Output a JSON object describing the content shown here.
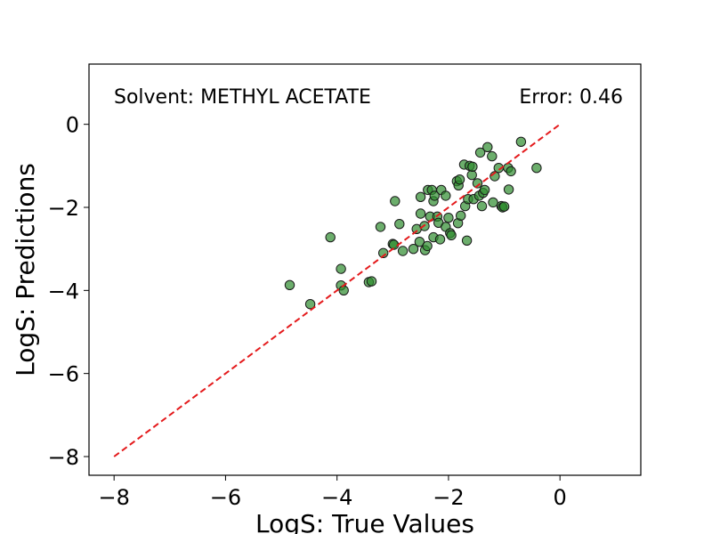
{
  "chart_data": {
    "type": "scatter",
    "xlabel": "LogS: True Values",
    "ylabel": "LogS: Predictions",
    "xlim": [
      -8.45,
      1.45
    ],
    "ylim": [
      -8.45,
      1.45
    ],
    "xticks": [
      -8,
      -6,
      -4,
      -2,
      0
    ],
    "yticks": [
      -8,
      -6,
      -4,
      -2,
      0
    ],
    "xtick_labels": [
      "−8",
      "−6",
      "−4",
      "−2",
      "0"
    ],
    "ytick_labels": [
      "−8",
      "−6",
      "−4",
      "−2",
      "0"
    ],
    "grid": false,
    "annotations": {
      "solvent": "Solvent: METHYL ACETATE",
      "error": "Error: 0.46"
    },
    "reference_line": {
      "from": [
        -8,
        -8
      ],
      "to": [
        0,
        0
      ],
      "color": "#e41a1c",
      "style": "dashed"
    },
    "marker": {
      "fill": "#2e8b2e",
      "edge": "#1a1a1a",
      "opacity": 0.7
    },
    "points": [
      [
        -4.85,
        -3.87
      ],
      [
        -4.48,
        -4.33
      ],
      [
        -4.12,
        -2.72
      ],
      [
        -3.93,
        -3.48
      ],
      [
        -3.93,
        -3.88
      ],
      [
        -3.88,
        -4.0
      ],
      [
        -3.43,
        -3.8
      ],
      [
        -3.38,
        -3.78
      ],
      [
        -3.22,
        -2.47
      ],
      [
        -3.17,
        -3.1
      ],
      [
        -3.0,
        -2.88
      ],
      [
        -2.98,
        -2.9
      ],
      [
        -2.96,
        -1.85
      ],
      [
        -2.88,
        -2.4
      ],
      [
        -2.82,
        -3.05
      ],
      [
        -2.63,
        -3.0
      ],
      [
        -2.57,
        -2.52
      ],
      [
        -2.52,
        -2.83
      ],
      [
        -2.5,
        -1.75
      ],
      [
        -2.5,
        -2.15
      ],
      [
        -2.43,
        -2.45
      ],
      [
        -2.42,
        -3.03
      ],
      [
        -2.38,
        -2.93
      ],
      [
        -2.37,
        -1.58
      ],
      [
        -2.33,
        -2.22
      ],
      [
        -2.3,
        -1.58
      ],
      [
        -2.27,
        -1.85
      ],
      [
        -2.27,
        -2.72
      ],
      [
        -2.25,
        -1.72
      ],
      [
        -2.2,
        -2.22
      ],
      [
        -2.18,
        -2.37
      ],
      [
        -2.15,
        -2.77
      ],
      [
        -2.13,
        -1.58
      ],
      [
        -2.05,
        -1.72
      ],
      [
        -2.05,
        -2.47
      ],
      [
        -2.0,
        -2.25
      ],
      [
        -1.97,
        -2.62
      ],
      [
        -1.95,
        -2.67
      ],
      [
        -1.85,
        -1.37
      ],
      [
        -1.83,
        -2.38
      ],
      [
        -1.82,
        -1.47
      ],
      [
        -1.8,
        -1.33
      ],
      [
        -1.78,
        -2.2
      ],
      [
        -1.72,
        -0.97
      ],
      [
        -1.7,
        -1.97
      ],
      [
        -1.67,
        -2.8
      ],
      [
        -1.65,
        -1.8
      ],
      [
        -1.62,
        -1.0
      ],
      [
        -1.58,
        -1.22
      ],
      [
        -1.57,
        -1.02
      ],
      [
        -1.55,
        -1.8
      ],
      [
        -1.48,
        -1.42
      ],
      [
        -1.45,
        -1.72
      ],
      [
        -1.43,
        -0.68
      ],
      [
        -1.4,
        -1.97
      ],
      [
        -1.38,
        -1.65
      ],
      [
        -1.35,
        -1.58
      ],
      [
        -1.3,
        -0.55
      ],
      [
        -1.22,
        -0.77
      ],
      [
        -1.2,
        -1.88
      ],
      [
        -1.17,
        -1.25
      ],
      [
        -1.1,
        -1.05
      ],
      [
        -1.05,
        -1.97
      ],
      [
        -1.03,
        -2.0
      ],
      [
        -1.0,
        -1.98
      ],
      [
        -0.93,
        -1.05
      ],
      [
        -0.92,
        -1.57
      ],
      [
        -0.88,
        -1.13
      ],
      [
        -0.7,
        -0.42
      ],
      [
        -0.42,
        -1.05
      ]
    ]
  }
}
